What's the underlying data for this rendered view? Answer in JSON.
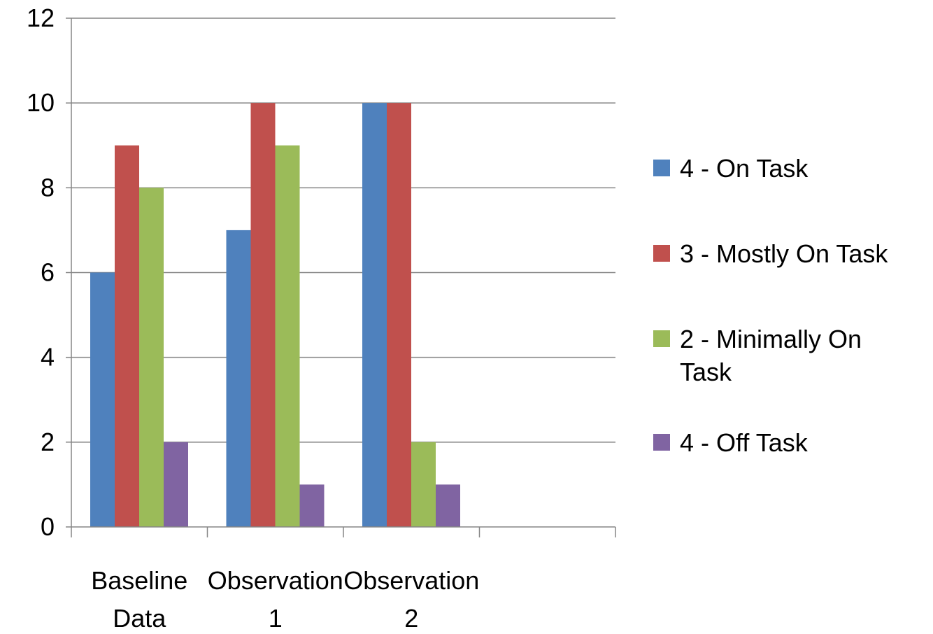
{
  "chart_data": {
    "type": "bar",
    "title": "",
    "xlabel": "",
    "ylabel": "",
    "categories": [
      [
        "Baseline",
        "Data"
      ],
      [
        "Observation",
        "1"
      ],
      [
        "Observation",
        "2"
      ],
      [
        "",
        ""
      ]
    ],
    "series": [
      {
        "name": "4 - On Task",
        "color": "#4f81bd",
        "values": [
          6,
          7,
          10,
          null
        ]
      },
      {
        "name": "3 - Mostly On Task",
        "color": "#c0504d",
        "values": [
          9,
          10,
          10,
          null
        ]
      },
      {
        "name": "2 - Minimally On Task",
        "color": "#9bbb59",
        "values": [
          8,
          9,
          2,
          null
        ]
      },
      {
        "name": "4 - Off Task",
        "color": "#8064a2",
        "values": [
          2,
          1,
          1,
          null
        ]
      }
    ],
    "ylim": [
      0,
      12
    ],
    "yticks": [
      0,
      2,
      4,
      6,
      8,
      10,
      12
    ],
    "grid": true,
    "legend": "right"
  }
}
